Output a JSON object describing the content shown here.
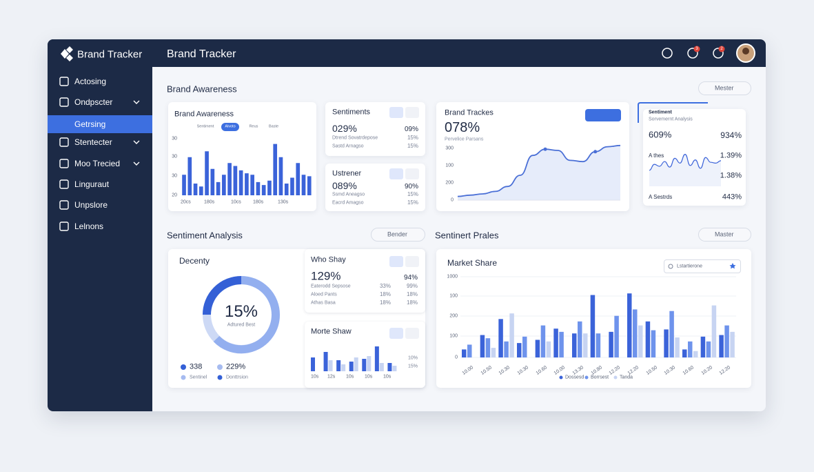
{
  "sidebar": {
    "brand": "Brand Tracker",
    "active": 2,
    "items": [
      {
        "label": "Actosing",
        "submenu": false
      },
      {
        "label": "Ondpscter",
        "submenu": true
      },
      {
        "label": "Getrsing",
        "submenu": true
      },
      {
        "label": "Stentecter",
        "submenu": true
      },
      {
        "label": "Moo Trecied",
        "submenu": true
      },
      {
        "label": "Linguraut",
        "submenu": false
      },
      {
        "label": "Unpslore",
        "submenu": false
      },
      {
        "label": "Lelnons",
        "submenu": false
      }
    ]
  },
  "header": {
    "title": "Brand Tracker",
    "badges": [
      "3",
      "2"
    ]
  },
  "awareness": {
    "title": "Brand Awareness",
    "filter": "Mester",
    "chart": {
      "title": "Brand Awareness",
      "tabs": [
        "Sentiment",
        "Alvoto",
        "Reus",
        "Baste"
      ],
      "active_tab": 1,
      "y_labels": [
        "30",
        "30",
        "30",
        "20"
      ],
      "x_labels": [
        "20cs",
        "180s",
        "10cs",
        "180s",
        "130s"
      ],
      "color": "#3b63d9",
      "ylim": [
        0,
        40
      ],
      "values": [
        14,
        26,
        8,
        6,
        30,
        18,
        9,
        14,
        22,
        20,
        17,
        15,
        14,
        9,
        7,
        10,
        35,
        26,
        8,
        12,
        22,
        14,
        13
      ]
    },
    "sentiments": {
      "title": "Sentiments",
      "value": "029%",
      "side": "09%",
      "rows": [
        [
          "Dtrend Sovatrdepose",
          "15%"
        ],
        [
          "Sastd Arnagso",
          "15%"
        ]
      ]
    },
    "ustrener": {
      "title": "Ustrener",
      "value": "089%",
      "side": "90%",
      "rows": [
        [
          "Ssmd Aneagso",
          "15%"
        ],
        [
          "Eacrd Amagso",
          "15%"
        ]
      ]
    },
    "trackes": {
      "title": "Brand Trackes",
      "value": "078%",
      "subtitle": "Pervelice Parsans",
      "y_labels": [
        "300",
        "100",
        "200",
        "0"
      ],
      "color": "#4a6fd6",
      "ylim": [
        0,
        100
      ],
      "markers": [
        7,
        11
      ],
      "values": [
        6,
        8,
        10,
        14,
        22,
        40,
        72,
        82,
        80,
        64,
        62,
        78,
        86,
        88
      ]
    },
    "analysis": {
      "title": "Sentiment",
      "subtitle": "Sorvemernt Analysis",
      "value": "609%",
      "side": "934%",
      "rows": [
        [
          "A thes",
          "1.39%"
        ],
        [
          "",
          "1.38%"
        ],
        [
          "A Sestrds",
          "443%"
        ]
      ],
      "color": "#3b63d9",
      "ylim": [
        0,
        100
      ],
      "values": [
        40,
        55,
        50,
        62,
        48,
        70,
        58,
        80,
        52,
        66,
        45,
        72,
        60,
        58,
        64
      ]
    }
  },
  "sentiment": {
    "title": "Sentiment Analysis",
    "filter": "Bender",
    "donut": {
      "title": "Decenty",
      "value": "15%",
      "caption": "Adtured Best",
      "legend": [
        [
          "338",
          "Sentinel"
        ],
        [
          "229%",
          "Donttrsion"
        ]
      ]
    },
    "who": {
      "title": "Who Shay",
      "value": "129%",
      "side": "94%",
      "rows": [
        [
          "Eaterodd Sepsose",
          "33%",
          "99%"
        ],
        [
          "Aloed Pants",
          "18%",
          "18%"
        ],
        [
          "Athas Basa",
          "18%",
          "18%"
        ]
      ]
    },
    "morte": {
      "title": "Morte Shaw",
      "side": [
        "10%",
        "15%"
      ],
      "x_labels": [
        "10s",
        "12s",
        "10s",
        "10s",
        "10s"
      ],
      "ylim": [
        0,
        100
      ],
      "series": [
        {
          "color": "#3b63d9",
          "values": [
            50,
            70,
            40,
            35,
            45,
            90,
            30
          ]
        },
        {
          "color": "#c7d4f2",
          "values": [
            0,
            40,
            25,
            50,
            55,
            30,
            20
          ]
        }
      ]
    }
  },
  "prales": {
    "title": "Sentinert Prales",
    "filter": "Master",
    "market": {
      "title": "Market Share",
      "search": "Lstartierone",
      "y_labels": [
        "1000",
        "100",
        "200",
        "100",
        "0"
      ],
      "x_labels": [
        "10.00",
        "10.50",
        "10.30",
        "10.30",
        "10.60",
        "10.00",
        "13.30",
        "10.80",
        "12.20",
        "12.20",
        "10.50",
        "10.30",
        "10.60",
        "10.20",
        "12.20"
      ],
      "ylim": [
        0,
        100
      ],
      "series": [
        {
          "name": "Dossesd",
          "color": "#3b63d9",
          "values": [
            10,
            28,
            48,
            18,
            22,
            36,
            30,
            78,
            32,
            80,
            45,
            35,
            10,
            26,
            28
          ]
        },
        {
          "name": "Borrsest",
          "color": "#6e93ec",
          "values": [
            16,
            24,
            20,
            26,
            40,
            32,
            45,
            30,
            52,
            60,
            34,
            58,
            20,
            20,
            40
          ]
        },
        {
          "name": "Tanda",
          "color": "#c7d4f2",
          "values": [
            0,
            12,
            55,
            0,
            20,
            0,
            30,
            0,
            0,
            40,
            0,
            25,
            8,
            65,
            32
          ]
        }
      ]
    }
  }
}
